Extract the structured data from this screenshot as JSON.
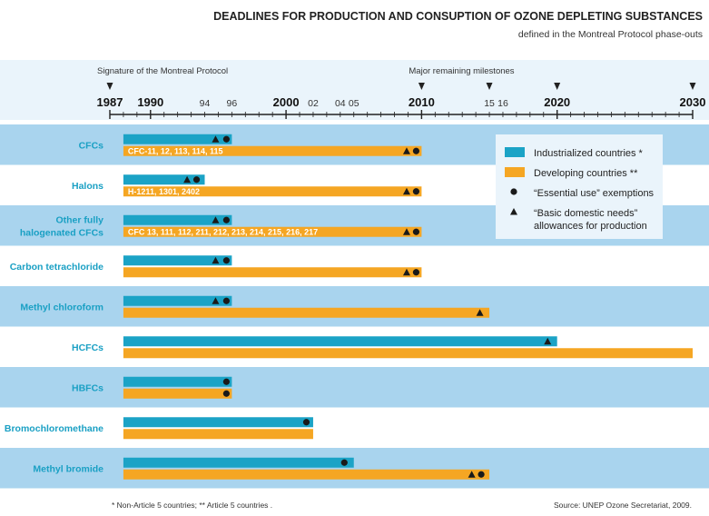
{
  "chart_data": {
    "type": "bar",
    "title": "DEADLINES FOR PRODUCTION AND CONSUPTION OF OZONE DEPLETING SUBSTANCES",
    "subtitle": "defined in the Montreal Protocol phase-outs",
    "x_range": [
      1987,
      2030
    ],
    "major_ticks": [
      {
        "value": 1987,
        "label": "1987"
      },
      {
        "value": 1990,
        "label": "1990"
      },
      {
        "value": 2000,
        "label": "2000"
      },
      {
        "value": 2010,
        "label": "2010"
      },
      {
        "value": 2020,
        "label": "2020"
      },
      {
        "value": 2030,
        "label": "2030"
      }
    ],
    "minor_ticks": [
      {
        "value": 1994,
        "label": "94"
      },
      {
        "value": 1996,
        "label": "96"
      },
      {
        "value": 2002,
        "label": "02"
      },
      {
        "value": 2004,
        "label": "04"
      },
      {
        "value": 2005,
        "label": "05"
      },
      {
        "value": 2015,
        "label": "15"
      },
      {
        "value": 2016,
        "label": "16"
      }
    ],
    "annotations": [
      {
        "text": "Signature of the Montreal Protocol",
        "year": 1987
      },
      {
        "text": "Major remaining milestones",
        "year": 2010
      }
    ],
    "milestone_years": [
      1987,
      2010,
      2015,
      2020,
      2030
    ],
    "series": [
      {
        "name": "Industrialized countries *",
        "color": "#1ba3c6"
      },
      {
        "name": "Developing countries **",
        "color": "#f5a623"
      }
    ],
    "legend": [
      {
        "kind": "swatch",
        "color": "#1ba3c6",
        "label": "Industrialized countries *"
      },
      {
        "kind": "swatch",
        "color": "#f5a623",
        "label": "Developing countries **"
      },
      {
        "kind": "dot",
        "label": "“Essential use” exemptions"
      },
      {
        "kind": "triangle",
        "label": "“Basic domestic needs”",
        "label2": "allowances for production"
      }
    ],
    "legend_position": "top-right",
    "categories": [
      {
        "label": [
          "CFCs"
        ],
        "shaded": true,
        "industrialized": {
          "start": 1988,
          "end": 1996,
          "marks": [
            {
              "type": "triangle",
              "year": 1994.8
            },
            {
              "type": "dot",
              "year": 1995.6
            }
          ]
        },
        "developing": {
          "start": 1988,
          "end": 2010,
          "text": "CFC-11, 12,  113,  114,  115",
          "marks": [
            {
              "type": "triangle",
              "year": 2008.9
            },
            {
              "type": "dot",
              "year": 2009.6
            }
          ]
        }
      },
      {
        "label": [
          "Halons"
        ],
        "shaded": false,
        "industrialized": {
          "start": 1988,
          "end": 1994,
          "marks": [
            {
              "type": "triangle",
              "year": 1992.7
            },
            {
              "type": "dot",
              "year": 1993.4
            }
          ]
        },
        "developing": {
          "start": 1988,
          "end": 2010,
          "text": "H-1211, 1301, 2402",
          "marks": [
            {
              "type": "triangle",
              "year": 2008.9
            },
            {
              "type": "dot",
              "year": 2009.6
            }
          ]
        }
      },
      {
        "label": [
          "Other fully",
          "halogenated CFCs"
        ],
        "shaded": true,
        "industrialized": {
          "start": 1988,
          "end": 1996,
          "marks": [
            {
              "type": "triangle",
              "year": 1994.8
            },
            {
              "type": "dot",
              "year": 1995.6
            }
          ]
        },
        "developing": {
          "start": 1988,
          "end": 2010,
          "text": "CFC 13, 111, 112, 211, 212, 213, 214, 215, 216, 217",
          "marks": [
            {
              "type": "triangle",
              "year": 2008.9
            },
            {
              "type": "dot",
              "year": 2009.6
            }
          ]
        }
      },
      {
        "label": [
          "Carbon tetrachloride"
        ],
        "shaded": false,
        "industrialized": {
          "start": 1988,
          "end": 1996,
          "marks": [
            {
              "type": "triangle",
              "year": 1994.8
            },
            {
              "type": "dot",
              "year": 1995.6
            }
          ]
        },
        "developing": {
          "start": 1988,
          "end": 2010,
          "marks": [
            {
              "type": "triangle",
              "year": 2008.9
            },
            {
              "type": "dot",
              "year": 2009.6
            }
          ]
        }
      },
      {
        "label": [
          "Methyl chloroform"
        ],
        "shaded": true,
        "industrialized": {
          "start": 1988,
          "end": 1996,
          "marks": [
            {
              "type": "triangle",
              "year": 1994.8
            },
            {
              "type": "dot",
              "year": 1995.6
            }
          ]
        },
        "developing": {
          "start": 1988,
          "end": 2015,
          "marks": [
            {
              "type": "triangle",
              "year": 2014.3
            }
          ]
        }
      },
      {
        "label": [
          "HCFCs"
        ],
        "shaded": false,
        "industrialized": {
          "start": 1988,
          "end": 2020,
          "marks": [
            {
              "type": "triangle",
              "year": 2019.3
            }
          ]
        },
        "developing": {
          "start": 1988,
          "end": 2030,
          "marks": []
        }
      },
      {
        "label": [
          "HBFCs"
        ],
        "shaded": true,
        "industrialized": {
          "start": 1988,
          "end": 1996,
          "marks": [
            {
              "type": "dot",
              "year": 1995.6
            }
          ]
        },
        "developing": {
          "start": 1988,
          "end": 1996,
          "marks": [
            {
              "type": "dot",
              "year": 1995.6
            }
          ]
        }
      },
      {
        "label": [
          "Bromochloromethane"
        ],
        "shaded": false,
        "industrialized": {
          "start": 1988,
          "end": 2002,
          "marks": [
            {
              "type": "dot",
              "year": 2001.5
            }
          ]
        },
        "developing": {
          "start": 1988,
          "end": 2002,
          "marks": []
        }
      },
      {
        "label": [
          "Methyl bromide"
        ],
        "shaded": true,
        "industrialized": {
          "start": 1988,
          "end": 2005,
          "marks": [
            {
              "type": "dot",
              "year": 2004.3
            }
          ]
        },
        "developing": {
          "start": 1988,
          "end": 2015,
          "marks": [
            {
              "type": "triangle",
              "year": 2013.7
            },
            {
              "type": "dot",
              "year": 2014.4
            }
          ]
        }
      }
    ],
    "footnote": "* Non-Article 5 countries; ** Article 5 countries .",
    "source": "Source: UNEP Ozone Secretariat, 2009.",
    "colors": {
      "industrialized": "#1ba3c6",
      "developing": "#f5a623",
      "row_shade": "#a9d4ee",
      "header_shade": "#eaf4fb",
      "category_text": "#1aa0c4"
    }
  }
}
